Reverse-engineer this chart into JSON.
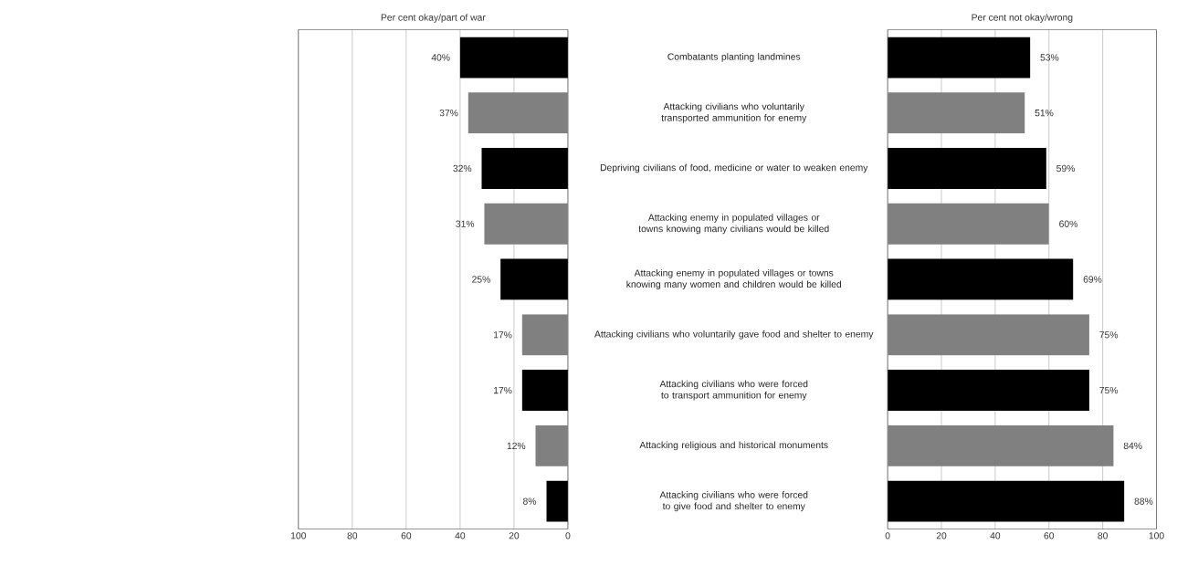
{
  "chart_data": [
    {
      "type": "bar",
      "orientation": "horizontal",
      "title": "Per cent okay/part of war",
      "categories": [
        null,
        null,
        null,
        null,
        null,
        null,
        null,
        null,
        null
      ],
      "values": [
        40,
        37,
        32,
        31,
        25,
        17,
        17,
        12,
        8
      ],
      "value_labels": [
        "40%",
        "37%",
        "32%",
        "31%",
        "25%",
        "17%",
        "17%",
        "12%",
        "8%"
      ],
      "colors": [
        "#000000",
        "#808080",
        "#000000",
        "#808080",
        "#000000",
        "#808080",
        "#000000",
        "#808080",
        "#000000"
      ],
      "xlim": [
        100,
        0
      ],
      "xticks": [
        100,
        80,
        60,
        40,
        20,
        0
      ],
      "grid": "x"
    },
    {
      "type": "bar",
      "orientation": "horizontal",
      "title": "Per cent not okay/wrong",
      "categories": [
        "Combatants planting landmines",
        "Attacking civilians who voluntarily transported ammunition for enemy",
        "Depriving civilians of food, medicine or water to weaken enemy",
        "Attacking enemy in populated villages or towns knowing many civilians would be killed",
        "Attacking enemy in populated villages or towns knowing many women and children would be killed",
        "Attacking civilians who voluntarily gave food and shelter to enemy",
        "Attacking civilians who were forced to transport ammunition for enemy",
        "Attacking religious and historical monuments",
        "Attacking civilians who were forced to give food and shelter to enemy"
      ],
      "values": [
        53,
        51,
        59,
        60,
        69,
        75,
        75,
        84,
        88
      ],
      "value_labels": [
        "53%",
        "51%",
        "59%",
        "60%",
        "69%",
        "75%",
        "75%",
        "84%",
        "88%"
      ],
      "colors": [
        "#000000",
        "#808080",
        "#000000",
        "#808080",
        "#000000",
        "#808080",
        "#000000",
        "#808080",
        "#000000"
      ],
      "xlim": [
        0,
        100
      ],
      "xticks": [
        0,
        20,
        40,
        60,
        80,
        100
      ],
      "grid": "x"
    }
  ]
}
